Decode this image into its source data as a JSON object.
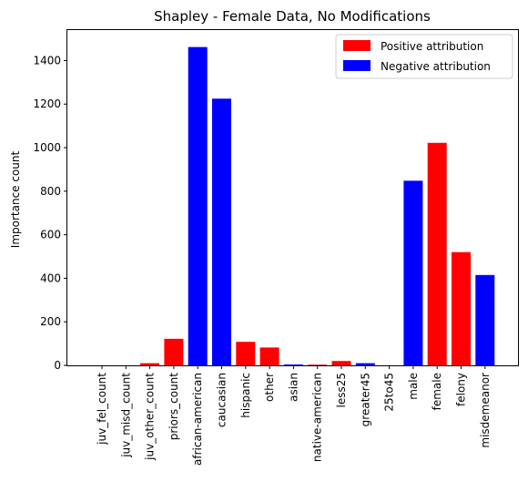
{
  "chart_data": {
    "type": "bar",
    "title": "Shapley - Female Data, No Modifications",
    "xlabel": "",
    "ylabel": "Importance count",
    "ylim": [
      0,
      1540
    ],
    "yticks": [
      0,
      200,
      400,
      600,
      800,
      1000,
      1200,
      1400
    ],
    "grid": false,
    "legend_position": "top-right",
    "colors": {
      "positive": "#ff0000",
      "negative": "#0000ff"
    },
    "legend": [
      {
        "label": "Positive attribution",
        "color": "#ff0000"
      },
      {
        "label": "Negative attribution",
        "color": "#0000ff"
      }
    ],
    "categories": [
      "juv_fel_count",
      "juv_misd_count",
      "juv_other_count",
      "priors_count",
      "african-american",
      "caucasian",
      "hispanic",
      "other",
      "asian",
      "native-american",
      "less25",
      "greater45",
      "25to45",
      "male",
      "female",
      "felony",
      "misdemeanor"
    ],
    "values": [
      0,
      0,
      10,
      122,
      1462,
      1225,
      108,
      82,
      4,
      3,
      20,
      10,
      0,
      848,
      1022,
      520,
      415
    ],
    "attribution": [
      "positive",
      "positive",
      "positive",
      "positive",
      "negative",
      "negative",
      "positive",
      "positive",
      "negative",
      "positive",
      "positive",
      "negative",
      "positive",
      "negative",
      "positive",
      "positive",
      "negative"
    ]
  }
}
